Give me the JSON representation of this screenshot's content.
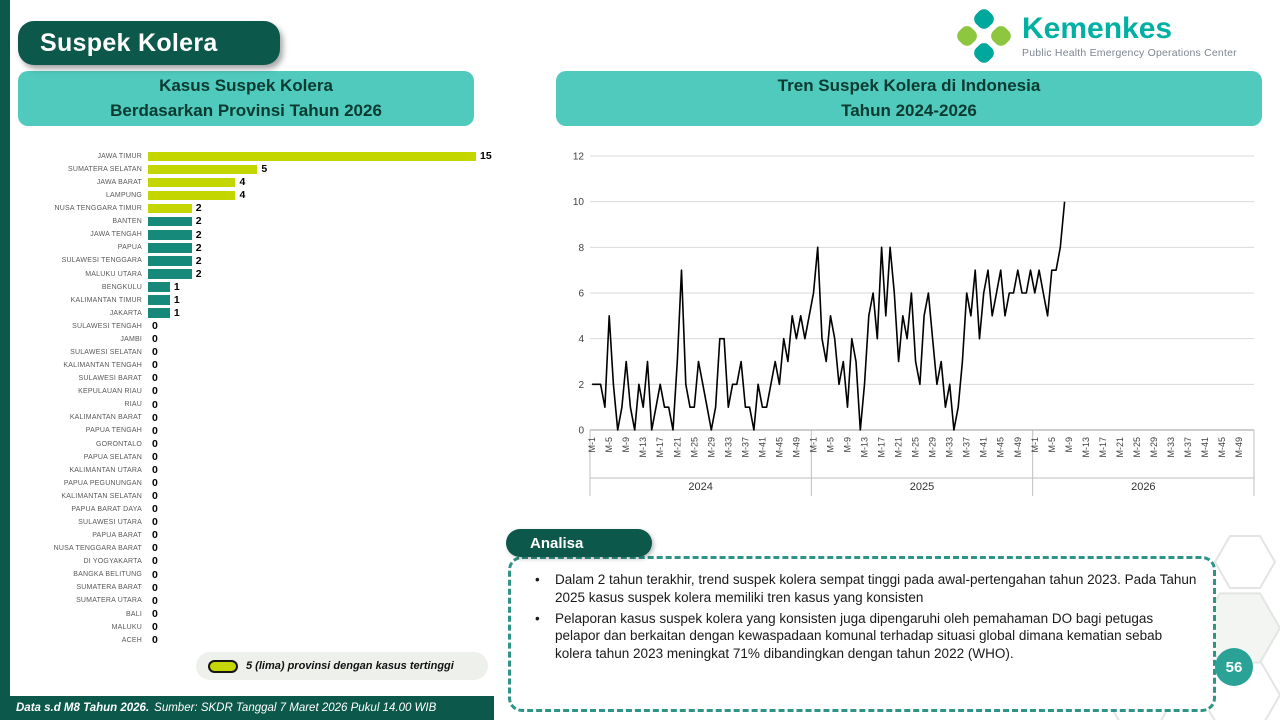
{
  "page": {
    "badge_title": "Suspek Kolera",
    "page_number": "56",
    "footer": {
      "bold": "Data s.d M8 Tahun 2026.",
      "italic": "Sumber: SKDR Tanggal 7 Maret 2026 Pukul 14.00 WIB"
    }
  },
  "logo": {
    "title": "Kemenkes",
    "subtitle": "Public Health Emergency Operations Center"
  },
  "left_panel": {
    "header_line1": "Kasus Suspek Kolera",
    "header_line2": "Berdasarkan Provinsi Tahun 2026",
    "legend_label": "5 (lima) provinsi dengan kasus tertinggi"
  },
  "right_panel": {
    "header_line1": "Tren Suspek Kolera di Indonesia",
    "header_line2": "Tahun 2024-2026"
  },
  "analysis": {
    "title": "Analisa",
    "bullets": [
      "Dalam 2 tahun terakhir, trend suspek kolera sempat tinggi pada awal-pertengahan tahun 2023. Pada Tahun 2025 kasus suspek kolera memiliki tren kasus yang konsisten",
      "Pelaporan kasus suspek kolera yang konsisten juga dipengaruhi oleh pemahaman DO bagi petugas pelapor dan berkaitan dengan kewaspadaan komunal terhadap situasi global dimana kematian sebab kolera tahun 2023 meningkat 71% dibandingkan dengan tahun 2022 (WHO)."
    ]
  },
  "colors": {
    "dark_teal": "#0c584a",
    "header_teal": "#4fcabd",
    "bar_highlight": "#c4d600",
    "bar_normal": "#17897b",
    "line": "#000000",
    "page_circle": "#2aa296"
  },
  "chart_data": [
    {
      "type": "bar",
      "orientation": "horizontal",
      "title": "Kasus Suspek Kolera Berdasarkan Provinsi Tahun 2026",
      "categories": [
        "JAWA TIMUR",
        "SUMATERA SELATAN",
        "JAWA BARAT",
        "LAMPUNG",
        "NUSA TENGGARA TIMUR",
        "BANTEN",
        "JAWA TENGAH",
        "PAPUA",
        "SULAWESI TENGGARA",
        "MALUKU UTARA",
        "BENGKULU",
        "KALIMANTAN TIMUR",
        "JAKARTA",
        "SULAWESI TENGAH",
        "JAMBI",
        "SULAWESI SELATAN",
        "KALIMANTAN TENGAH",
        "SULAWESI BARAT",
        "KEPULAUAN RIAU",
        "RIAU",
        "KALIMANTAN BARAT",
        "PAPUA TENGAH",
        "GORONTALO",
        "PAPUA SELATAN",
        "KALIMANTAN UTARA",
        "PAPUA PEGUNUNGAN",
        "KALIMANTAN SELATAN",
        "PAPUA BARAT DAYA",
        "SULAWESI UTARA",
        "PAPUA BARAT",
        "NUSA TENGGARA BARAT",
        "DI YOGYAKARTA",
        "BANGKA BELITUNG",
        "SUMATERA BARAT",
        "SUMATERA UTARA",
        "BALI",
        "MALUKU",
        "ACEH"
      ],
      "values": [
        15,
        5,
        4,
        4,
        2,
        2,
        2,
        2,
        2,
        2,
        1,
        1,
        1,
        0,
        0,
        0,
        0,
        0,
        0,
        0,
        0,
        0,
        0,
        0,
        0,
        0,
        0,
        0,
        0,
        0,
        0,
        0,
        0,
        0,
        0,
        0,
        0,
        0
      ],
      "xlim": [
        0,
        15
      ],
      "highlight_count": 5,
      "highlight_color": "#c4d600",
      "bar_color": "#17897b",
      "legend": "5 (lima) provinsi dengan kasus tertinggi"
    },
    {
      "type": "line",
      "title": "Tren Suspek Kolera di Indonesia Tahun 2024-2026",
      "ylim": [
        0,
        12
      ],
      "yticks": [
        0,
        2,
        4,
        6,
        8,
        10,
        12
      ],
      "x_tick_labels": [
        "M-1",
        "M-5",
        "M-9",
        "M-13",
        "M-17",
        "M-21",
        "M-25",
        "M-29",
        "M-33",
        "M-37",
        "M-41",
        "M-45",
        "M-49"
      ],
      "line_color": "#000000",
      "grid": true,
      "year_groups": [
        {
          "year": "2024",
          "weeks": 52,
          "values": [
            2,
            2,
            2,
            1,
            5,
            2,
            0,
            1,
            3,
            1,
            0,
            2,
            1,
            3,
            0,
            1,
            2,
            1,
            1,
            0,
            3,
            7,
            2,
            1,
            1,
            3,
            2,
            1,
            0,
            1,
            4,
            4,
            1,
            2,
            2,
            3,
            1,
            1,
            0,
            2,
            1,
            1,
            2,
            3,
            2,
            4,
            3,
            5,
            4,
            5,
            4,
            5
          ]
        },
        {
          "year": "2025",
          "weeks": 52,
          "values": [
            6,
            8,
            4,
            3,
            5,
            4,
            2,
            3,
            1,
            4,
            3,
            0,
            2,
            5,
            6,
            4,
            8,
            5,
            8,
            6,
            3,
            5,
            4,
            6,
            3,
            2,
            5,
            6,
            4,
            2,
            3,
            1,
            2,
            0,
            1,
            3,
            6,
            5,
            7,
            4,
            6,
            7,
            5,
            6,
            7,
            5,
            6,
            6,
            7,
            6,
            6,
            7
          ]
        },
        {
          "year": "2026",
          "weeks": 52,
          "values": [
            6,
            7,
            6,
            5,
            7,
            7,
            8,
            10
          ]
        }
      ]
    }
  ]
}
